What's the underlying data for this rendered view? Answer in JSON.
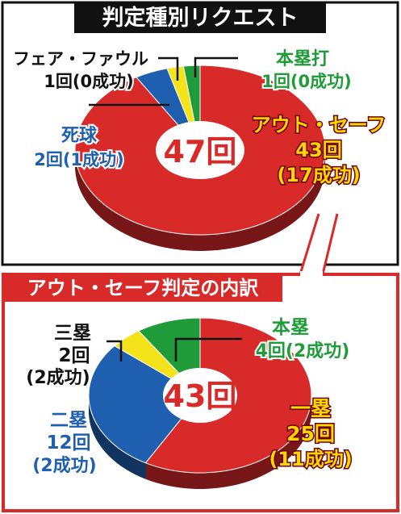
{
  "colors": {
    "out_safe": "#d92a2a",
    "dead_ball": "#1f5fb0",
    "fair_foul": "#f4e21a",
    "home_run": "#1f9b3a",
    "first_base": "#d92a2a",
    "second_base": "#1f5fb0",
    "third_base": "#f4e21a",
    "home_base": "#1f9b3a",
    "title_bg": "#111111",
    "title_text": "#ffffff",
    "accent_yellow": "#ffd700"
  },
  "chart_data": [
    {
      "type": "pie",
      "title": "判定種別リクエスト",
      "total_label": "47回",
      "slices": [
        {
          "key": "out_safe",
          "name": "アウト・セーフ",
          "count_text": "43回",
          "success_text": "(17成功)",
          "value": 43,
          "success": 17
        },
        {
          "key": "dead_ball",
          "name": "死球",
          "count_text": "2回(1成功)",
          "value": 2,
          "success": 1
        },
        {
          "key": "fair_foul",
          "name": "フェア・ファウル",
          "count_text": "1回(0成功)",
          "value": 1,
          "success": 0
        },
        {
          "key": "home_run",
          "name": "本塁打",
          "count_text": "1回(0成功)",
          "value": 1,
          "success": 0
        }
      ]
    },
    {
      "type": "pie",
      "title": "アウト・セーフ判定の内訳",
      "total_label": "43回",
      "slices": [
        {
          "key": "first_base",
          "name": "一塁",
          "count_text": "25回",
          "success_text": "(11成功)",
          "value": 25,
          "success": 11
        },
        {
          "key": "second_base",
          "name": "二塁",
          "count_text": "12回",
          "success_text": "(2成功)",
          "value": 12,
          "success": 2
        },
        {
          "key": "third_base",
          "name": "三塁",
          "count_text": "2回",
          "success_text": "(2成功)",
          "value": 2,
          "success": 2
        },
        {
          "key": "home_base",
          "name": "本塁",
          "count_text": "4回(2成功)",
          "value": 4,
          "success": 2
        }
      ]
    }
  ]
}
